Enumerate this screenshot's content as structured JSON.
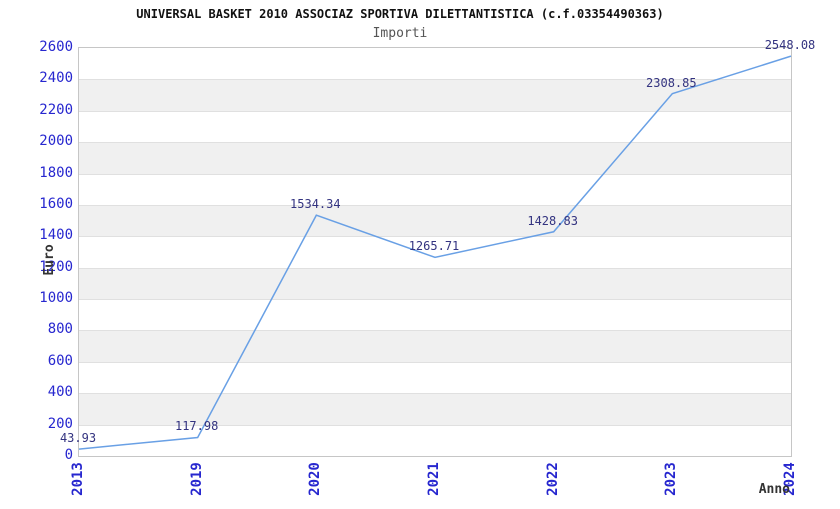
{
  "chart_data": {
    "type": "line",
    "title": "UNIVERSAL BASKET 2010 ASSOCIAZ SPORTIVA DILETTANTISTICA (c.f.03354490363)",
    "subtitle": "Importi",
    "xlabel": "Anno",
    "ylabel": "Euro",
    "categories": [
      "2013",
      "2019",
      "2020",
      "2021",
      "2022",
      "2023",
      "2024"
    ],
    "values": [
      43.93,
      117.98,
      1534.34,
      1265.71,
      1428.83,
      2308.85,
      2548.08
    ],
    "ylim": [
      0,
      2600
    ],
    "ytick_step": 200,
    "grid": true,
    "legend_position": "none",
    "colors": {
      "line": "#69a0e5",
      "tick_label": "#2727cf",
      "value_label": "#333380",
      "band": "#f0f0f0",
      "gridline": "#e0e0e0",
      "plot_border": "#c6c6c6",
      "title": "#111111",
      "subtitle": "#555555",
      "axis_title": "#333333"
    }
  }
}
